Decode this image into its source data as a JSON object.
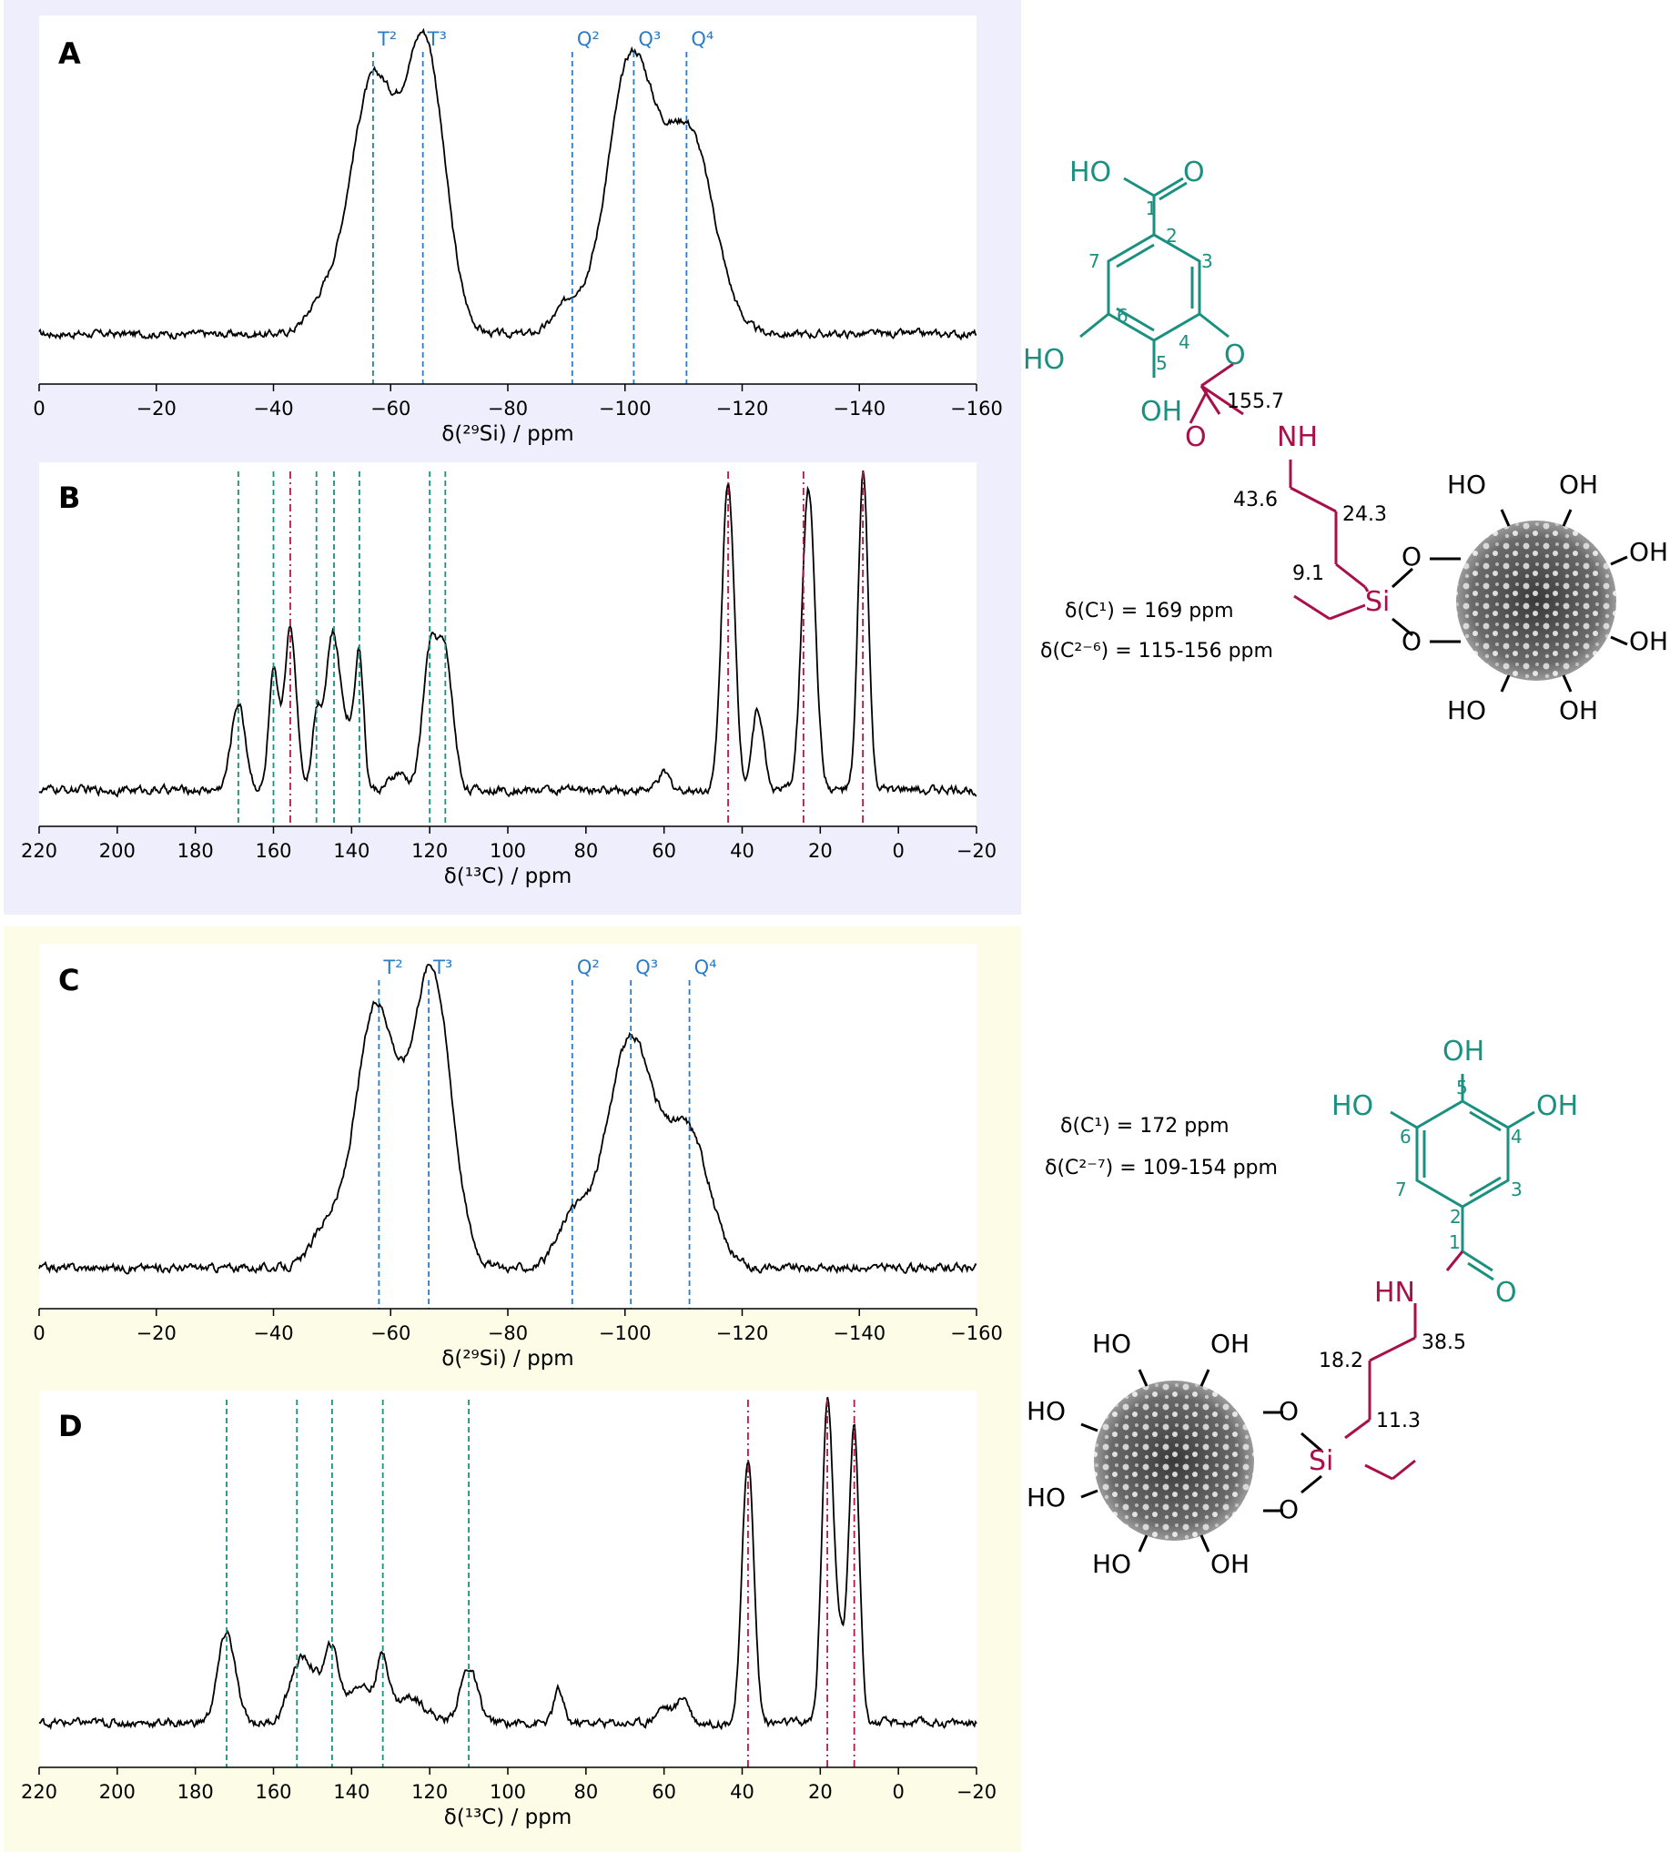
{
  "panel_labels": {
    "a": "A",
    "b": "B",
    "c": "C",
    "d": "D"
  },
  "structure_top": {
    "ho_acid": "HO",
    "o_acid": "O",
    "oh_left": "HO",
    "oh_bottom": "OH",
    "o_ester": "O",
    "o_carb": "O",
    "nh": "NH",
    "n1": "1",
    "n2": "2",
    "n3": "3",
    "n4": "4",
    "n5": "5",
    "n6": "6",
    "n7": "7",
    "shift_carbamate": "155.7",
    "shift_a": "43.6",
    "shift_b": "24.3",
    "shift_c": "9.1",
    "si": "Si",
    "o_si1": "O",
    "o_si2": "O",
    "np_oh": [
      "HO",
      "OH",
      "OH",
      "OH",
      "OH",
      "HO"
    ],
    "note1": "δ(C¹) =  169 ppm",
    "note2": "δ(C²⁻⁶) = 115-156 ppm"
  },
  "structure_bottom": {
    "oh_top": "OH",
    "ho_left": "HO",
    "oh_right": "OH",
    "o_amide": "O",
    "hn": "HN",
    "n1": "1",
    "n2": "2",
    "n3": "3",
    "n4": "4",
    "n5": "5",
    "n6": "6",
    "n7": "7",
    "shift_a": "38.5",
    "shift_b": "18.2",
    "shift_c": "11.3",
    "si": "Si",
    "o_si1": "O",
    "o_si2": "O",
    "np_oh": [
      "HO",
      "OH",
      "HO",
      "HO",
      "HO",
      "OH"
    ],
    "note1": "δ(C¹) = 172 ppm",
    "note2": "δ(C²⁻⁷) = 109-154 ppm"
  },
  "chart_data": [
    {
      "id": "A",
      "type": "line",
      "xlabel": "δ(²⁹Si) / ppm",
      "xlim": [
        0,
        -160
      ],
      "xticks": [
        0,
        -20,
        -40,
        -60,
        -80,
        -100,
        -120,
        -140,
        -160
      ],
      "xtick_labels": [
        "0",
        "−20",
        "−40",
        "−60",
        "−80",
        "−100",
        "−120",
        "−140",
        "−160"
      ],
      "guides": [
        {
          "x": -57,
          "label": "T²",
          "color": "#2a7cc7",
          "style": "dash"
        },
        {
          "x": -65.5,
          "label": "T³",
          "color": "#2a7cc7",
          "style": "dash"
        },
        {
          "x": -91,
          "label": "Q²",
          "color": "#2a7cc7",
          "style": "dash"
        },
        {
          "x": -101.5,
          "label": "Q³",
          "color": "#2a7cc7",
          "style": "dash"
        },
        {
          "x": -110.5,
          "label": "Q⁴",
          "color": "#2a7cc7",
          "style": "dash"
        }
      ],
      "peaks": [
        {
          "x": -48,
          "h": 0.08,
          "w": 2.5
        },
        {
          "x": -57,
          "h": 0.87,
          "w": 4
        },
        {
          "x": -66,
          "h": 0.96,
          "w": 3.3
        },
        {
          "x": -90.5,
          "h": 0.1,
          "w": 2.5
        },
        {
          "x": -101,
          "h": 0.93,
          "w": 4
        },
        {
          "x": -111,
          "h": 0.68,
          "w": 4.2
        }
      ]
    },
    {
      "id": "B",
      "type": "line",
      "xlabel": "δ(¹³C) / ppm",
      "xlim": [
        220,
        -20
      ],
      "xticks": [
        220,
        200,
        180,
        160,
        140,
        120,
        100,
        80,
        60,
        40,
        20,
        0,
        -20
      ],
      "xtick_labels": [
        "220",
        "200",
        "180",
        "160",
        "140",
        "120",
        "100",
        "80",
        "60",
        "40",
        "20",
        "0",
        "−20"
      ],
      "guides": [
        {
          "x": 169,
          "color": "#1a9080",
          "style": "dash"
        },
        {
          "x": 160,
          "color": "#1a9080",
          "style": "dash"
        },
        {
          "x": 155.7,
          "color": "#b01a50",
          "style": "dashdot"
        },
        {
          "x": 149,
          "color": "#1a9080",
          "style": "dash"
        },
        {
          "x": 144.5,
          "color": "#1a9080",
          "style": "dash"
        },
        {
          "x": 138,
          "color": "#1a9080",
          "style": "dash"
        },
        {
          "x": 120,
          "color": "#1a9080",
          "style": "dash"
        },
        {
          "x": 116,
          "color": "#1a9080",
          "style": "dash"
        },
        {
          "x": 43.6,
          "color": "#b01a50",
          "style": "dashdot"
        },
        {
          "x": 24.3,
          "color": "#b01a50",
          "style": "dashdot"
        },
        {
          "x": 9.1,
          "color": "#b01a50",
          "style": "dashdot"
        }
      ],
      "peaks": [
        {
          "x": 169,
          "h": 0.27,
          "w": 1.8
        },
        {
          "x": 160,
          "h": 0.35,
          "w": 1.2
        },
        {
          "x": 155.7,
          "h": 0.5,
          "w": 1.6
        },
        {
          "x": 149,
          "h": 0.22,
          "w": 1.2
        },
        {
          "x": 145,
          "h": 0.46,
          "w": 1.8
        },
        {
          "x": 138,
          "h": 0.38,
          "w": 1.1
        },
        {
          "x": 141,
          "h": 0.18,
          "w": 2
        },
        {
          "x": 120,
          "h": 0.4,
          "w": 1.9
        },
        {
          "x": 116,
          "h": 0.4,
          "w": 2
        },
        {
          "x": 128,
          "h": 0.05,
          "w": 2
        },
        {
          "x": 60,
          "h": 0.05,
          "w": 1.5
        },
        {
          "x": 43.6,
          "h": 0.96,
          "w": 1.6
        },
        {
          "x": 36,
          "h": 0.25,
          "w": 1.5
        },
        {
          "x": 23,
          "h": 0.93,
          "w": 1.7
        },
        {
          "x": 9,
          "h": 0.98,
          "w": 1.3
        }
      ]
    },
    {
      "id": "C",
      "type": "line",
      "xlabel": "δ(²⁹Si) / ppm",
      "xlim": [
        0,
        -160
      ],
      "xticks": [
        0,
        -20,
        -40,
        -60,
        -80,
        -100,
        -120,
        -140,
        -160
      ],
      "xtick_labels": [
        "0",
        "−20",
        "−40",
        "−60",
        "−80",
        "−100",
        "−120",
        "−140",
        "−160"
      ],
      "guides": [
        {
          "x": -58,
          "label": "T²",
          "color": "#2a7cc7",
          "style": "dash"
        },
        {
          "x": -66.5,
          "label": "T³",
          "color": "#2a7cc7",
          "style": "dash"
        },
        {
          "x": -91,
          "label": "Q²",
          "color": "#2a7cc7",
          "style": "dash"
        },
        {
          "x": -101,
          "label": "Q³",
          "color": "#2a7cc7",
          "style": "dash"
        },
        {
          "x": -111,
          "label": "Q⁴",
          "color": "#2a7cc7",
          "style": "dash"
        }
      ],
      "peaks": [
        {
          "x": -49,
          "h": 0.12,
          "w": 2.5
        },
        {
          "x": -57.5,
          "h": 0.84,
          "w": 3.5
        },
        {
          "x": -67,
          "h": 0.96,
          "w": 3.3
        },
        {
          "x": -91,
          "h": 0.15,
          "w": 2.5
        },
        {
          "x": -101,
          "h": 0.74,
          "w": 4.2
        },
        {
          "x": -111,
          "h": 0.42,
          "w": 3.5
        }
      ]
    },
    {
      "id": "D",
      "type": "line",
      "xlabel": "δ(¹³C) / ppm",
      "xlim": [
        220,
        -20
      ],
      "xticks": [
        220,
        200,
        180,
        160,
        140,
        120,
        100,
        80,
        60,
        40,
        20,
        0,
        -20
      ],
      "xtick_labels": [
        "220",
        "200",
        "180",
        "160",
        "140",
        "120",
        "100",
        "80",
        "60",
        "40",
        "20",
        "0",
        "−20"
      ],
      "guides": [
        {
          "x": 172,
          "color": "#1a9080",
          "style": "dash"
        },
        {
          "x": 154,
          "color": "#1a9080",
          "style": "dash"
        },
        {
          "x": 145,
          "color": "#1a9080",
          "style": "dash"
        },
        {
          "x": 132,
          "color": "#1a9080",
          "style": "dash"
        },
        {
          "x": 110,
          "color": "#1a9080",
          "style": "dash"
        },
        {
          "x": 38.5,
          "color": "#b01a50",
          "style": "dashdot"
        },
        {
          "x": 18.2,
          "color": "#b01a50",
          "style": "dashdot"
        },
        {
          "x": 11.3,
          "color": "#b01a50",
          "style": "dashdot"
        }
      ],
      "peaks": [
        {
          "x": 172,
          "h": 0.28,
          "w": 2.2
        },
        {
          "x": 154,
          "h": 0.13,
          "w": 2.5
        },
        {
          "x": 150,
          "h": 0.13,
          "w": 3
        },
        {
          "x": 145,
          "h": 0.2,
          "w": 1.8
        },
        {
          "x": 138,
          "h": 0.12,
          "w": 3
        },
        {
          "x": 132,
          "h": 0.18,
          "w": 1.6
        },
        {
          "x": 125,
          "h": 0.08,
          "w": 4
        },
        {
          "x": 110,
          "h": 0.17,
          "w": 2.2
        },
        {
          "x": 87,
          "h": 0.1,
          "w": 1.2
        },
        {
          "x": 60,
          "h": 0.05,
          "w": 2
        },
        {
          "x": 55,
          "h": 0.08,
          "w": 1.5
        },
        {
          "x": 38.5,
          "h": 0.82,
          "w": 1.5
        },
        {
          "x": 18.2,
          "h": 0.98,
          "w": 1.4
        },
        {
          "x": 15,
          "h": 0.25,
          "w": 1.5
        },
        {
          "x": 11.3,
          "h": 0.92,
          "w": 1.3
        }
      ]
    }
  ]
}
